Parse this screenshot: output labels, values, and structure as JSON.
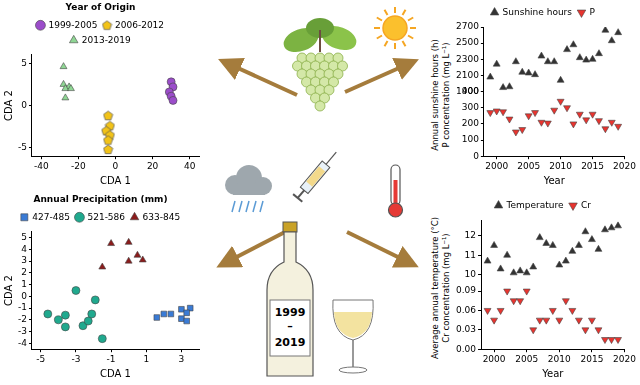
{
  "chart_data": [
    {
      "type": "scatter",
      "xlabel": "CDA 1",
      "ylabel": "CDA 2",
      "legend_title": "Year of Origin",
      "legend": "top",
      "grid": false,
      "xlim": [
        -45,
        45
      ],
      "xticks": [
        -40,
        -20,
        0,
        20,
        40
      ],
      "ylim": [
        -6,
        6
      ],
      "yticks": [
        -5,
        0,
        5
      ],
      "series": [
        {
          "name": "1999-2005",
          "color": "#9b4dca",
          "marker": "circle",
          "x": [
            30,
            31,
            29,
            30,
            31
          ],
          "values": [
            2.8,
            2.2,
            1.6,
            1.1,
            0.6
          ]
        },
        {
          "name": "2006-2012",
          "color": "#f2c318",
          "marker": "pentagon",
          "x": [
            -4,
            -3,
            -5,
            -3,
            -4,
            -4
          ],
          "values": [
            -1.2,
            -2.4,
            -3.0,
            -3.5,
            -4.1,
            -5.2
          ]
        },
        {
          "name": "2013-2019",
          "color": "#8fd694",
          "marker": "triangle",
          "x": [
            -28,
            -28,
            -25,
            -27,
            -24,
            -27
          ],
          "values": [
            4.6,
            2.5,
            2.2,
            2.0,
            2.0,
            0.9
          ]
        }
      ]
    },
    {
      "type": "scatter",
      "xlabel": "CDA 1",
      "ylabel": "CDA 2",
      "legend_title": "Annual Precipitation (mm)",
      "legend": "top",
      "grid": false,
      "xlim": [
        -5.5,
        4
      ],
      "xticks": [
        -5,
        -3,
        -1,
        1,
        3
      ],
      "ylim": [
        -4.5,
        5.5
      ],
      "yticks": [
        -4,
        -3,
        -2,
        -1,
        0,
        1,
        2,
        3,
        4,
        5
      ],
      "series": [
        {
          "name": "427-485",
          "color": "#3a7bd5",
          "marker": "square",
          "x": [
            3.5,
            3.0,
            3.3,
            2.4,
            3.0,
            1.6,
            2.0,
            3.3
          ],
          "values": [
            -1.0,
            -1.1,
            -1.4,
            -1.5,
            -1.9,
            -1.8,
            -1.5,
            -2.1
          ]
        },
        {
          "name": "521-586",
          "color": "#20a98e",
          "marker": "circle",
          "x": [
            -3.0,
            -4.6,
            -3.6,
            -2.1,
            -2.6,
            -3.6,
            -4.0,
            -1.9,
            -1.5,
            -2.3
          ],
          "values": [
            0.5,
            -1.5,
            -1.6,
            -1.5,
            -2.5,
            -2.6,
            -2.0,
            -0.3,
            -3.6,
            -2.1
          ]
        },
        {
          "name": "633-845",
          "color": "#8b1c1c",
          "marker": "triangle",
          "x": [
            -1.0,
            0.0,
            0.5,
            0.8,
            0.0,
            -1.5
          ],
          "values": [
            4.5,
            4.6,
            3.5,
            3.1,
            3.0,
            2.5
          ]
        }
      ]
    },
    {
      "type": "scatter",
      "xlabel": "Year",
      "ylabel": "P concentration (mg L⁻¹)",
      "y2label": "Annual sunshine hours (h)",
      "legend": "top",
      "grid": false,
      "x": [
        1999,
        2000,
        2001,
        2002,
        2003,
        2004,
        2005,
        2006,
        2007,
        2008,
        2009,
        2010,
        2011,
        2012,
        2013,
        2014,
        2015,
        2016,
        2017,
        2018,
        2019
      ],
      "xlim": [
        1998,
        2020
      ],
      "xticks": [
        2000,
        2005,
        2010,
        2015,
        2020
      ],
      "ylim": [
        0,
        400
      ],
      "yticks": [
        0,
        100,
        200,
        300,
        400
      ],
      "y2lim": [
        1900,
        2700
      ],
      "y2ticks": [
        1900,
        2100,
        2300,
        2500,
        2700
      ],
      "series": [
        {
          "name": "Sunshine hours",
          "color": "#333333",
          "marker": "triangle",
          "axis": "y2",
          "values": [
            2080,
            2240,
            1950,
            1960,
            2270,
            2140,
            2130,
            2110,
            2340,
            2270,
            2270,
            2040,
            2420,
            2480,
            2320,
            2290,
            2300,
            2370,
            2660,
            2530,
            2630
          ]
        },
        {
          "name": "P",
          "color": "#e8342f",
          "marker": "triangle_down",
          "values": [
            270,
            280,
            275,
            230,
            150,
            165,
            250,
            270,
            210,
            205,
            285,
            340,
            300,
            200,
            260,
            225,
            260,
            220,
            170,
            210,
            185
          ]
        }
      ]
    },
    {
      "type": "scatter",
      "xlabel": "Year",
      "ylabel": "Cr concentration (mg L⁻¹)",
      "y2label": "Average annual temperature (°C)",
      "legend": "top",
      "grid": false,
      "x": [
        1999,
        2000,
        2001,
        2002,
        2003,
        2004,
        2005,
        2006,
        2007,
        2008,
        2009,
        2010,
        2011,
        2012,
        2013,
        2014,
        2015,
        2016,
        2017,
        2018,
        2019
      ],
      "xlim": [
        1998,
        2020
      ],
      "xticks": [
        2000,
        2005,
        2010,
        2015,
        2020
      ],
      "ylim": [
        0,
        0.1
      ],
      "yticks": [
        {
          "value": 0,
          "label": "0.00"
        },
        {
          "value": 0.03,
          "label": "0.03"
        },
        {
          "value": 0.06,
          "label": "0.06"
        },
        {
          "value": 0.09,
          "label": "0.09"
        }
      ],
      "y2lim": [
        9.5,
        12.8
      ],
      "y2ticks": [
        10,
        11,
        12
      ],
      "series": [
        {
          "name": "Temperature",
          "color": "#333333",
          "marker": "triangle",
          "axis": "y2",
          "values": [
            10.7,
            11.5,
            10.3,
            11.0,
            10.1,
            10.2,
            10.1,
            10.4,
            11.9,
            11.6,
            11.5,
            10.5,
            10.7,
            11.2,
            11.5,
            12.2,
            11.8,
            11.3,
            12.3,
            12.4,
            12.5
          ]
        },
        {
          "name": "Cr",
          "color": "#e8342f",
          "marker": "triangle_down",
          "values": [
            0.06,
            0.045,
            0.06,
            0.09,
            0.075,
            0.075,
            0.09,
            0.03,
            0.045,
            0.045,
            0.06,
            0.045,
            0.075,
            0.06,
            0.045,
            0.03,
            0.045,
            0.03,
            0.015,
            0.015,
            0.015
          ]
        }
      ]
    }
  ],
  "illustration": {
    "bottle_label": [
      "1999",
      "–",
      "2019"
    ]
  }
}
